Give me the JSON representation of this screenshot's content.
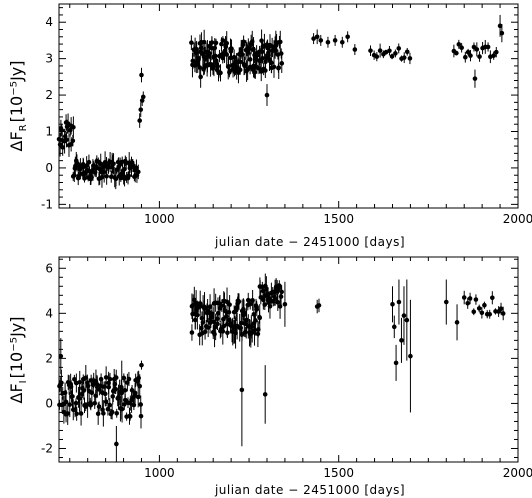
{
  "chart_data": [
    {
      "type": "scatter",
      "band": "R",
      "xlabel": "julian date − 2451000 [days]",
      "ylabel_main": "ΔF",
      "ylabel_sub": "R",
      "ylabel_unit": "[10⁻⁵Jy]",
      "xlim": [
        720,
        2000
      ],
      "ylim": [
        -1.1,
        4.5
      ],
      "xticks": [
        1000,
        1500,
        2000
      ],
      "yticks": [
        -1,
        0,
        1,
        2,
        3,
        4
      ],
      "segments": [
        {
          "x0": 720,
          "x1": 760,
          "ymean": 0.9,
          "amp": 0.35,
          "n": 18,
          "err": 0.35,
          "seed": 1
        },
        {
          "x0": 760,
          "x1": 940,
          "ymean": -0.05,
          "amp": 0.25,
          "n": 90,
          "err": 0.3,
          "seed": 2
        },
        {
          "x0": 1090,
          "x1": 1340,
          "ymean": 3.05,
          "amp": 0.45,
          "n": 150,
          "err": 0.35,
          "seed": 3
        },
        {
          "x0": 1590,
          "x1": 1700,
          "ymean": 3.15,
          "amp": 0.15,
          "n": 14,
          "err": 0.2,
          "seed": 4
        },
        {
          "x0": 1820,
          "x1": 1940,
          "ymean": 3.2,
          "amp": 0.2,
          "n": 16,
          "err": 0.2,
          "seed": 5
        }
      ],
      "points": [
        {
          "x": 945,
          "y": 1.3,
          "e": 0.2
        },
        {
          "x": 948,
          "y": 1.6,
          "e": 0.2
        },
        {
          "x": 952,
          "y": 1.85,
          "e": 0.15
        },
        {
          "x": 955,
          "y": 1.95,
          "e": 0.15
        },
        {
          "x": 950,
          "y": 2.55,
          "e": 0.2
        },
        {
          "x": 1300,
          "y": 2.0,
          "e": 0.3
        },
        {
          "x": 1115,
          "y": 2.5,
          "e": 0.3
        },
        {
          "x": 1430,
          "y": 3.55,
          "e": 0.15
        },
        {
          "x": 1440,
          "y": 3.6,
          "e": 0.2
        },
        {
          "x": 1450,
          "y": 3.5,
          "e": 0.15
        },
        {
          "x": 1470,
          "y": 3.45,
          "e": 0.15
        },
        {
          "x": 1490,
          "y": 3.5,
          "e": 0.15
        },
        {
          "x": 1510,
          "y": 3.45,
          "e": 0.15
        },
        {
          "x": 1525,
          "y": 3.6,
          "e": 0.15
        },
        {
          "x": 1545,
          "y": 3.25,
          "e": 0.15
        },
        {
          "x": 1880,
          "y": 2.45,
          "e": 0.25
        },
        {
          "x": 1950,
          "y": 3.9,
          "e": 0.3
        },
        {
          "x": 1955,
          "y": 3.7,
          "e": 0.25
        }
      ]
    },
    {
      "type": "scatter",
      "band": "I",
      "xlabel": "julian date − 2451000 [days]",
      "ylabel_main": "ΔF",
      "ylabel_sub": "I",
      "ylabel_unit": "[10⁻⁵Jy]",
      "xlim": [
        720,
        2000
      ],
      "ylim": [
        -2.6,
        6.5
      ],
      "xticks": [
        1000,
        1500,
        2000
      ],
      "yticks": [
        -2,
        0,
        2,
        4,
        6
      ],
      "segments": [
        {
          "x0": 720,
          "x1": 950,
          "ymean": 0.3,
          "amp": 0.9,
          "n": 110,
          "err": 0.6,
          "seed": 11
        },
        {
          "x0": 1090,
          "x1": 1280,
          "ymean": 3.8,
          "amp": 0.8,
          "n": 110,
          "err": 0.7,
          "seed": 12
        },
        {
          "x0": 1280,
          "x1": 1340,
          "ymean": 4.8,
          "amp": 0.5,
          "n": 30,
          "err": 0.6,
          "seed": 13
        },
        {
          "x0": 1860,
          "x1": 1960,
          "ymean": 4.3,
          "amp": 0.4,
          "n": 14,
          "err": 0.3,
          "seed": 14
        }
      ],
      "points": [
        {
          "x": 725,
          "y": 2.1,
          "e": 0.8
        },
        {
          "x": 880,
          "y": -1.8,
          "e": 0.8
        },
        {
          "x": 895,
          "y": 0.6,
          "e": 1.3
        },
        {
          "x": 950,
          "y": 1.7,
          "e": 0.2
        },
        {
          "x": 1230,
          "y": 0.6,
          "e": 2.5
        },
        {
          "x": 1295,
          "y": 0.4,
          "e": 1.3
        },
        {
          "x": 1350,
          "y": 4.4,
          "e": 1.0
        },
        {
          "x": 1440,
          "y": 4.3,
          "e": 0.3
        },
        {
          "x": 1445,
          "y": 4.35,
          "e": 0.3
        },
        {
          "x": 1650,
          "y": 4.4,
          "e": 0.8
        },
        {
          "x": 1660,
          "y": 1.8,
          "e": 0.8
        },
        {
          "x": 1668,
          "y": 4.5,
          "e": 1.0
        },
        {
          "x": 1675,
          "y": 2.8,
          "e": 1.0
        },
        {
          "x": 1682,
          "y": 3.9,
          "e": 1.3
        },
        {
          "x": 1690,
          "y": 3.7,
          "e": 1.8
        },
        {
          "x": 1700,
          "y": 2.1,
          "e": 2.5
        },
        {
          "x": 1655,
          "y": 3.4,
          "e": 0.5
        },
        {
          "x": 1800,
          "y": 4.5,
          "e": 1.0
        },
        {
          "x": 1830,
          "y": 3.6,
          "e": 0.8
        },
        {
          "x": 1850,
          "y": 4.7,
          "e": 0.3
        }
      ]
    }
  ]
}
